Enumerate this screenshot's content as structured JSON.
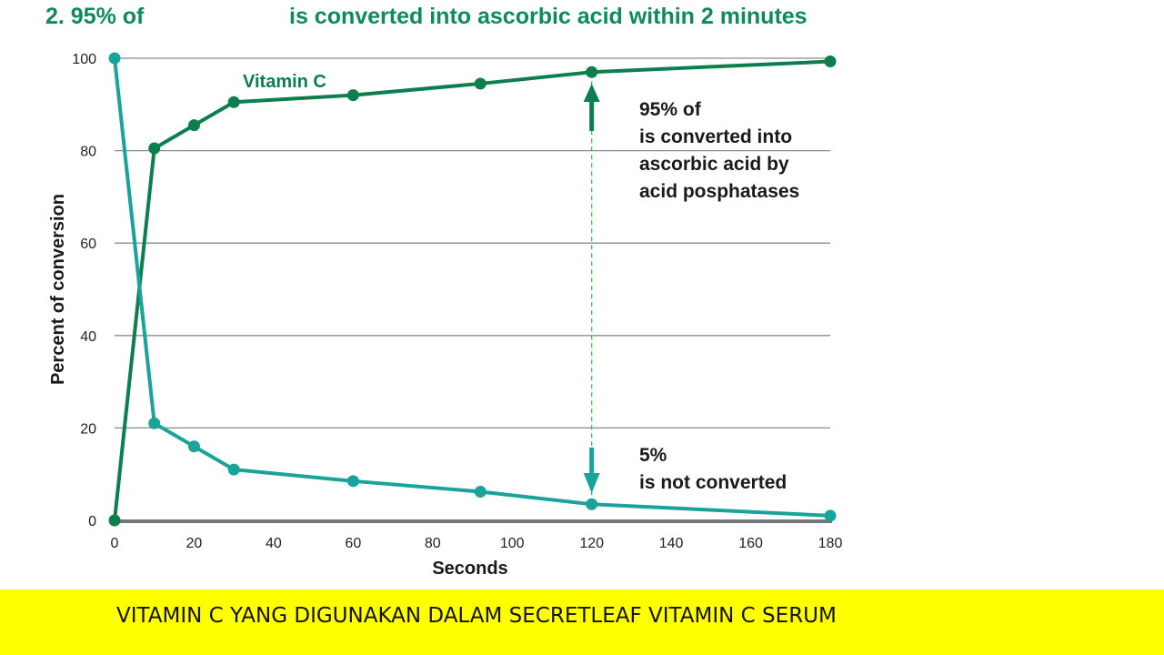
{
  "headline": {
    "left": "2. 95% of",
    "right": "is converted into ascorbic acid within 2 minutes"
  },
  "colors": {
    "vitamin_c": "#0b7f4d",
    "unconverted": "#1aa39a",
    "headline": "#0e8a5f",
    "banner": "#ffff00",
    "grid": "#8c8c8c"
  },
  "chart_data": {
    "type": "line",
    "xlabel": "Seconds",
    "ylabel": "Percent of conversion",
    "xlim": [
      0,
      180
    ],
    "ylim": [
      0,
      100
    ],
    "x_ticks": [
      0,
      20,
      40,
      60,
      80,
      100,
      120,
      140,
      160,
      180
    ],
    "y_ticks": [
      0,
      20,
      40,
      60,
      80,
      100
    ],
    "grid": "horizontal",
    "series": [
      {
        "name": "Vitamin C",
        "color": "#0b7f4d",
        "x": [
          0,
          10,
          20,
          30,
          60,
          92,
          120,
          180
        ],
        "y": [
          0,
          80.5,
          85.5,
          90.5,
          92,
          94.5,
          97,
          99.3
        ]
      },
      {
        "name": "",
        "color": "#1aa39a",
        "x": [
          0,
          10,
          20,
          30,
          60,
          92,
          120,
          180
        ],
        "y": [
          100,
          21,
          16,
          11,
          8.5,
          6.2,
          3.5,
          1
        ]
      }
    ],
    "annotations": [
      {
        "id": "top",
        "lines": [
          "95% of",
          "is converted into",
          "ascorbic acid by",
          "acid posphatases"
        ]
      },
      {
        "id": "bottom",
        "lines": [
          "5%",
          "is not converted"
        ]
      }
    ]
  },
  "banner": {
    "text": "VITAMIN C  YANG DIGUNAKAN DALAM SECRETLEAF VITAMIN C SERUM"
  }
}
